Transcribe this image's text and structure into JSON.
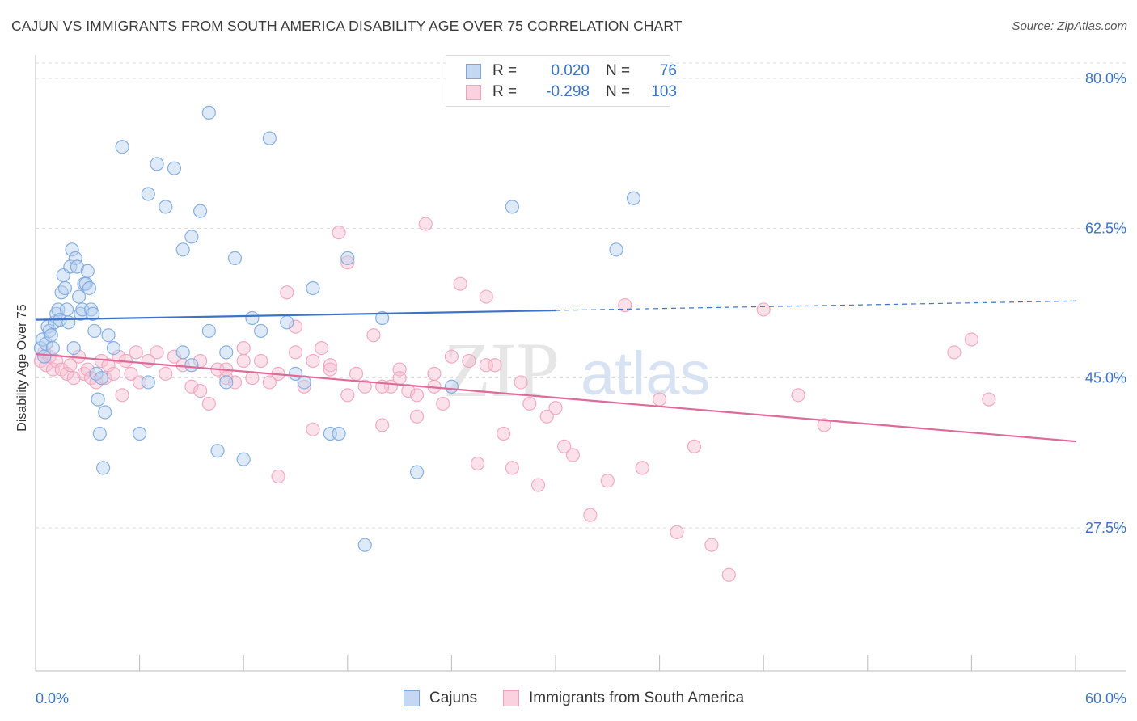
{
  "title": "CAJUN VS IMMIGRANTS FROM SOUTH AMERICA DISABILITY AGE OVER 75 CORRELATION CHART",
  "source": "Source: ZipAtlas.com",
  "watermark": {
    "zip": "ZIP",
    "atlas": "atlas"
  },
  "legend_top": {
    "rows": [
      {
        "r_label": "R =",
        "r_value": "0.020",
        "n_label": "N =",
        "n_value": "76"
      },
      {
        "r_label": "R =",
        "r_value": "-0.298",
        "n_label": "N =",
        "n_value": "103"
      }
    ]
  },
  "chart_data": {
    "type": "scatter",
    "title": "CAJUN VS IMMIGRANTS FROM SOUTH AMERICA DISABILITY AGE OVER 75 CORRELATION CHART",
    "xlabel": "",
    "ylabel": "Disability Age Over 75",
    "xlim": [
      0,
      60
    ],
    "ylim": [
      10,
      83
    ],
    "x_tick_labels": [
      "0.0%",
      "60.0%"
    ],
    "y_ticks": [
      27.5,
      45.0,
      62.5,
      80.0
    ],
    "y_tick_labels": [
      "27.5%",
      "45.0%",
      "62.5%",
      "80.0%"
    ],
    "grid": true,
    "legend_position": "bottom",
    "colors": {
      "cajuns": "#7aa7e0",
      "cajuns_line": "#3b73c8",
      "immigrants": "#f1a3bd",
      "immigrants_line": "#e0699a",
      "axis_text": "#3b73c8",
      "grid": "#dddddd"
    },
    "series": [
      {
        "name": "Cajuns",
        "trend": {
          "x": [
            0,
            30
          ],
          "y": [
            51.8,
            52.9
          ],
          "dashed_extension_to": [
            60,
            54.0
          ]
        },
        "points": [
          [
            0.3,
            48.5
          ],
          [
            0.4,
            49.5
          ],
          [
            0.5,
            47.5
          ],
          [
            0.6,
            49.0
          ],
          [
            0.7,
            51.0
          ],
          [
            0.8,
            50.5
          ],
          [
            0.9,
            50.0
          ],
          [
            1.0,
            48.5
          ],
          [
            1.1,
            51.5
          ],
          [
            1.2,
            52.5
          ],
          [
            1.3,
            53.0
          ],
          [
            1.4,
            51.8
          ],
          [
            1.5,
            55.0
          ],
          [
            1.6,
            57.0
          ],
          [
            1.7,
            55.5
          ],
          [
            1.8,
            53.0
          ],
          [
            1.9,
            51.5
          ],
          [
            2.0,
            58.0
          ],
          [
            2.1,
            60.0
          ],
          [
            2.2,
            48.5
          ],
          [
            2.3,
            59.0
          ],
          [
            2.4,
            58.0
          ],
          [
            2.5,
            54.5
          ],
          [
            2.6,
            52.5
          ],
          [
            2.7,
            53.0
          ],
          [
            2.8,
            56.0
          ],
          [
            2.9,
            56.0
          ],
          [
            3.0,
            57.5
          ],
          [
            3.1,
            55.5
          ],
          [
            3.2,
            53.0
          ],
          [
            3.3,
            52.5
          ],
          [
            3.4,
            50.5
          ],
          [
            3.5,
            45.5
          ],
          [
            3.6,
            42.5
          ],
          [
            3.7,
            38.5
          ],
          [
            3.8,
            45.0
          ],
          [
            3.9,
            34.5
          ],
          [
            4.0,
            41.0
          ],
          [
            4.2,
            50.0
          ],
          [
            4.5,
            48.5
          ],
          [
            5.0,
            72.0
          ],
          [
            6.0,
            38.5
          ],
          [
            6.5,
            66.5
          ],
          [
            7.0,
            70.0
          ],
          [
            7.5,
            65.0
          ],
          [
            8.0,
            69.5
          ],
          [
            8.5,
            60.0
          ],
          [
            9.0,
            61.5
          ],
          [
            9.5,
            64.5
          ],
          [
            10.0,
            50.5
          ],
          [
            10.5,
            36.5
          ],
          [
            11.0,
            44.5
          ],
          [
            11.5,
            59.0
          ],
          [
            12.0,
            35.5
          ],
          [
            12.5,
            52.0
          ],
          [
            13.0,
            50.5
          ],
          [
            14.5,
            51.5
          ],
          [
            15.0,
            45.5
          ],
          [
            15.5,
            44.5
          ],
          [
            16.0,
            55.5
          ],
          [
            17.0,
            38.5
          ],
          [
            17.5,
            38.5
          ],
          [
            18.0,
            59.0
          ],
          [
            19.0,
            25.5
          ],
          [
            20.0,
            52.0
          ],
          [
            9.0,
            46.5
          ],
          [
            11.0,
            48.0
          ],
          [
            10.0,
            76.0
          ],
          [
            13.5,
            73.0
          ],
          [
            22.0,
            34.0
          ],
          [
            24.0,
            44.0
          ],
          [
            27.5,
            65.0
          ],
          [
            33.5,
            60.0
          ],
          [
            34.5,
            66.0
          ],
          [
            8.5,
            48.0
          ],
          [
            6.5,
            44.5
          ]
        ]
      },
      {
        "name": "Immigrants from South America",
        "trend": {
          "x": [
            0,
            60
          ],
          "y": [
            47.8,
            37.6
          ]
        },
        "points": [
          [
            0.3,
            47.0
          ],
          [
            0.5,
            48.0
          ],
          [
            0.6,
            46.5
          ],
          [
            0.8,
            47.5
          ],
          [
            1.0,
            46.0
          ],
          [
            1.2,
            47.0
          ],
          [
            1.5,
            46.0
          ],
          [
            1.8,
            45.5
          ],
          [
            2.0,
            46.5
          ],
          [
            2.2,
            45.0
          ],
          [
            2.5,
            47.5
          ],
          [
            2.8,
            45.5
          ],
          [
            3.0,
            46.0
          ],
          [
            3.2,
            45.0
          ],
          [
            3.5,
            44.5
          ],
          [
            3.8,
            47.0
          ],
          [
            4.0,
            45.0
          ],
          [
            4.2,
            46.5
          ],
          [
            4.5,
            45.5
          ],
          [
            4.8,
            47.5
          ],
          [
            5.0,
            43.0
          ],
          [
            5.2,
            47.0
          ],
          [
            5.5,
            45.5
          ],
          [
            5.8,
            48.0
          ],
          [
            6.0,
            44.5
          ],
          [
            6.5,
            47.0
          ],
          [
            7.0,
            48.0
          ],
          [
            7.5,
            45.5
          ],
          [
            8.0,
            47.5
          ],
          [
            8.5,
            46.5
          ],
          [
            9.0,
            44.0
          ],
          [
            9.5,
            47.0
          ],
          [
            10.0,
            42.0
          ],
          [
            10.5,
            46.0
          ],
          [
            11.0,
            45.0
          ],
          [
            11.5,
            44.5
          ],
          [
            12.0,
            48.5
          ],
          [
            12.5,
            45.0
          ],
          [
            13.0,
            47.0
          ],
          [
            13.5,
            44.5
          ],
          [
            14.0,
            33.5
          ],
          [
            14.5,
            55.0
          ],
          [
            15.0,
            51.0
          ],
          [
            15.5,
            44.0
          ],
          [
            16.0,
            39.0
          ],
          [
            16.5,
            48.5
          ],
          [
            17.0,
            46.5
          ],
          [
            17.5,
            62.0
          ],
          [
            18.0,
            58.5
          ],
          [
            18.5,
            45.5
          ],
          [
            19.0,
            44.0
          ],
          [
            19.5,
            50.0
          ],
          [
            20.0,
            39.5
          ],
          [
            20.5,
            44.0
          ],
          [
            21.0,
            46.0
          ],
          [
            21.5,
            43.5
          ],
          [
            22.0,
            40.5
          ],
          [
            22.5,
            63.0
          ],
          [
            23.0,
            44.0
          ],
          [
            23.5,
            42.0
          ],
          [
            24.0,
            47.5
          ],
          [
            24.5,
            56.0
          ],
          [
            25.0,
            47.0
          ],
          [
            25.5,
            35.0
          ],
          [
            26.0,
            54.5
          ],
          [
            26.5,
            46.5
          ],
          [
            27.0,
            38.5
          ],
          [
            27.5,
            34.5
          ],
          [
            28.0,
            44.5
          ],
          [
            28.5,
            42.0
          ],
          [
            29.0,
            32.5
          ],
          [
            29.5,
            40.5
          ],
          [
            30.0,
            41.5
          ],
          [
            30.5,
            37.0
          ],
          [
            31.0,
            36.0
          ],
          [
            32.0,
            29.0
          ],
          [
            33.0,
            33.0
          ],
          [
            34.0,
            53.5
          ],
          [
            35.0,
            34.5
          ],
          [
            36.0,
            42.5
          ],
          [
            37.0,
            27.0
          ],
          [
            38.0,
            37.0
          ],
          [
            39.0,
            25.5
          ],
          [
            40.0,
            22.0
          ],
          [
            42.0,
            53.0
          ],
          [
            45.5,
            39.5
          ],
          [
            53.0,
            48.0
          ],
          [
            54.0,
            49.5
          ],
          [
            55.0,
            42.5
          ],
          [
            44.0,
            43.0
          ],
          [
            26.0,
            46.5
          ],
          [
            20.0,
            44.0
          ],
          [
            21.0,
            45.0
          ],
          [
            22.0,
            43.0
          ],
          [
            23.0,
            45.5
          ],
          [
            18.0,
            43.0
          ],
          [
            17.0,
            46.0
          ],
          [
            16.0,
            47.0
          ],
          [
            15.0,
            48.0
          ],
          [
            12.0,
            47.0
          ],
          [
            9.5,
            43.5
          ],
          [
            11.0,
            46.0
          ],
          [
            14.0,
            45.5
          ]
        ]
      }
    ]
  },
  "legend_bottom": {
    "items": [
      {
        "label": "Cajuns"
      },
      {
        "label": "Immigrants from South America"
      }
    ]
  }
}
